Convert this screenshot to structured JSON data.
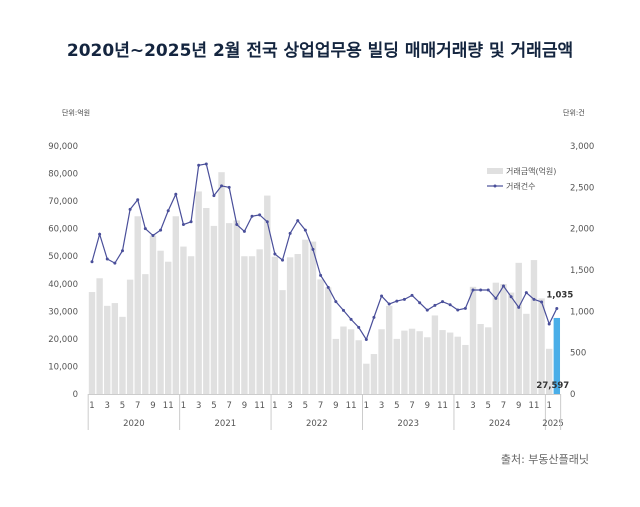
{
  "chart_data": {
    "type": "bar+line",
    "title": "2020년~2025년 2월 전국 상업업무용 빌딩 매매거래량 및 거래금액",
    "left_unit": "단위:억원",
    "right_unit": "단위:건",
    "source": "출처: 부동산플래닛",
    "left_ylim": [
      0,
      90000
    ],
    "right_ylim": [
      0,
      3000
    ],
    "left_ticks": [
      "0",
      "10,000",
      "20,000",
      "30,000",
      "40,000",
      "50,000",
      "60,000",
      "70,000",
      "80,000",
      "90,000"
    ],
    "right_ticks": [
      "0",
      "500",
      "1,000",
      "1,500",
      "2,000",
      "2,500",
      "3,000"
    ],
    "years": [
      {
        "label": "2020",
        "months": 12
      },
      {
        "label": "2021",
        "months": 12
      },
      {
        "label": "2022",
        "months": 12
      },
      {
        "label": "2023",
        "months": 12
      },
      {
        "label": "2024",
        "months": 12
      },
      {
        "label": "2025",
        "months": 2
      }
    ],
    "month_tick_labels": [
      "1",
      "3",
      "5",
      "7",
      "9",
      "11"
    ],
    "grid": false,
    "legend_position": "top-right",
    "colors": {
      "bar": "#e0e0e0",
      "highlight_bar": "#4aaee8",
      "line": "#4a4f9a",
      "title": "#14253f"
    },
    "series": [
      {
        "name": "거래금액(억원)",
        "type": "bar",
        "axis": "left",
        "values": [
          37000,
          42000,
          32000,
          33000,
          28000,
          41500,
          64500,
          43500,
          57500,
          52000,
          48000,
          64500,
          53500,
          50000,
          73500,
          67500,
          61000,
          80500,
          62000,
          63000,
          50000,
          50000,
          52500,
          72000,
          49800,
          37700,
          49600,
          50800,
          56000,
          55300,
          41600,
          38700,
          20000,
          24500,
          23500,
          19500,
          11000,
          14500,
          23500,
          32000,
          20000,
          23000,
          23700,
          22800,
          20600,
          28500,
          23200,
          22300,
          20800,
          17800,
          38900,
          25400,
          24200,
          40400,
          39900,
          36800,
          47600,
          29100,
          48600,
          34700,
          16400,
          27597
        ]
      },
      {
        "name": "거래건수",
        "type": "line",
        "axis": "right",
        "values": [
          1600,
          1933,
          1633,
          1583,
          1733,
          2233,
          2350,
          2000,
          1917,
          1983,
          2217,
          2417,
          2050,
          2083,
          2767,
          2783,
          2400,
          2517,
          2500,
          2050,
          1967,
          2150,
          2167,
          2083,
          1693,
          1620,
          1943,
          2097,
          1983,
          1750,
          1435,
          1290,
          1117,
          1012,
          903,
          806,
          660,
          927,
          1185,
          1088,
          1124,
          1145,
          1193,
          1104,
          1015,
          1072,
          1117,
          1080,
          1016,
          1036,
          1258,
          1258,
          1258,
          1157,
          1306,
          1177,
          1048,
          1226,
          1145,
          1113,
          847,
          1035
        ]
      }
    ],
    "data_labels": {
      "last_bar": "27,597",
      "last_point": "1,035"
    }
  }
}
